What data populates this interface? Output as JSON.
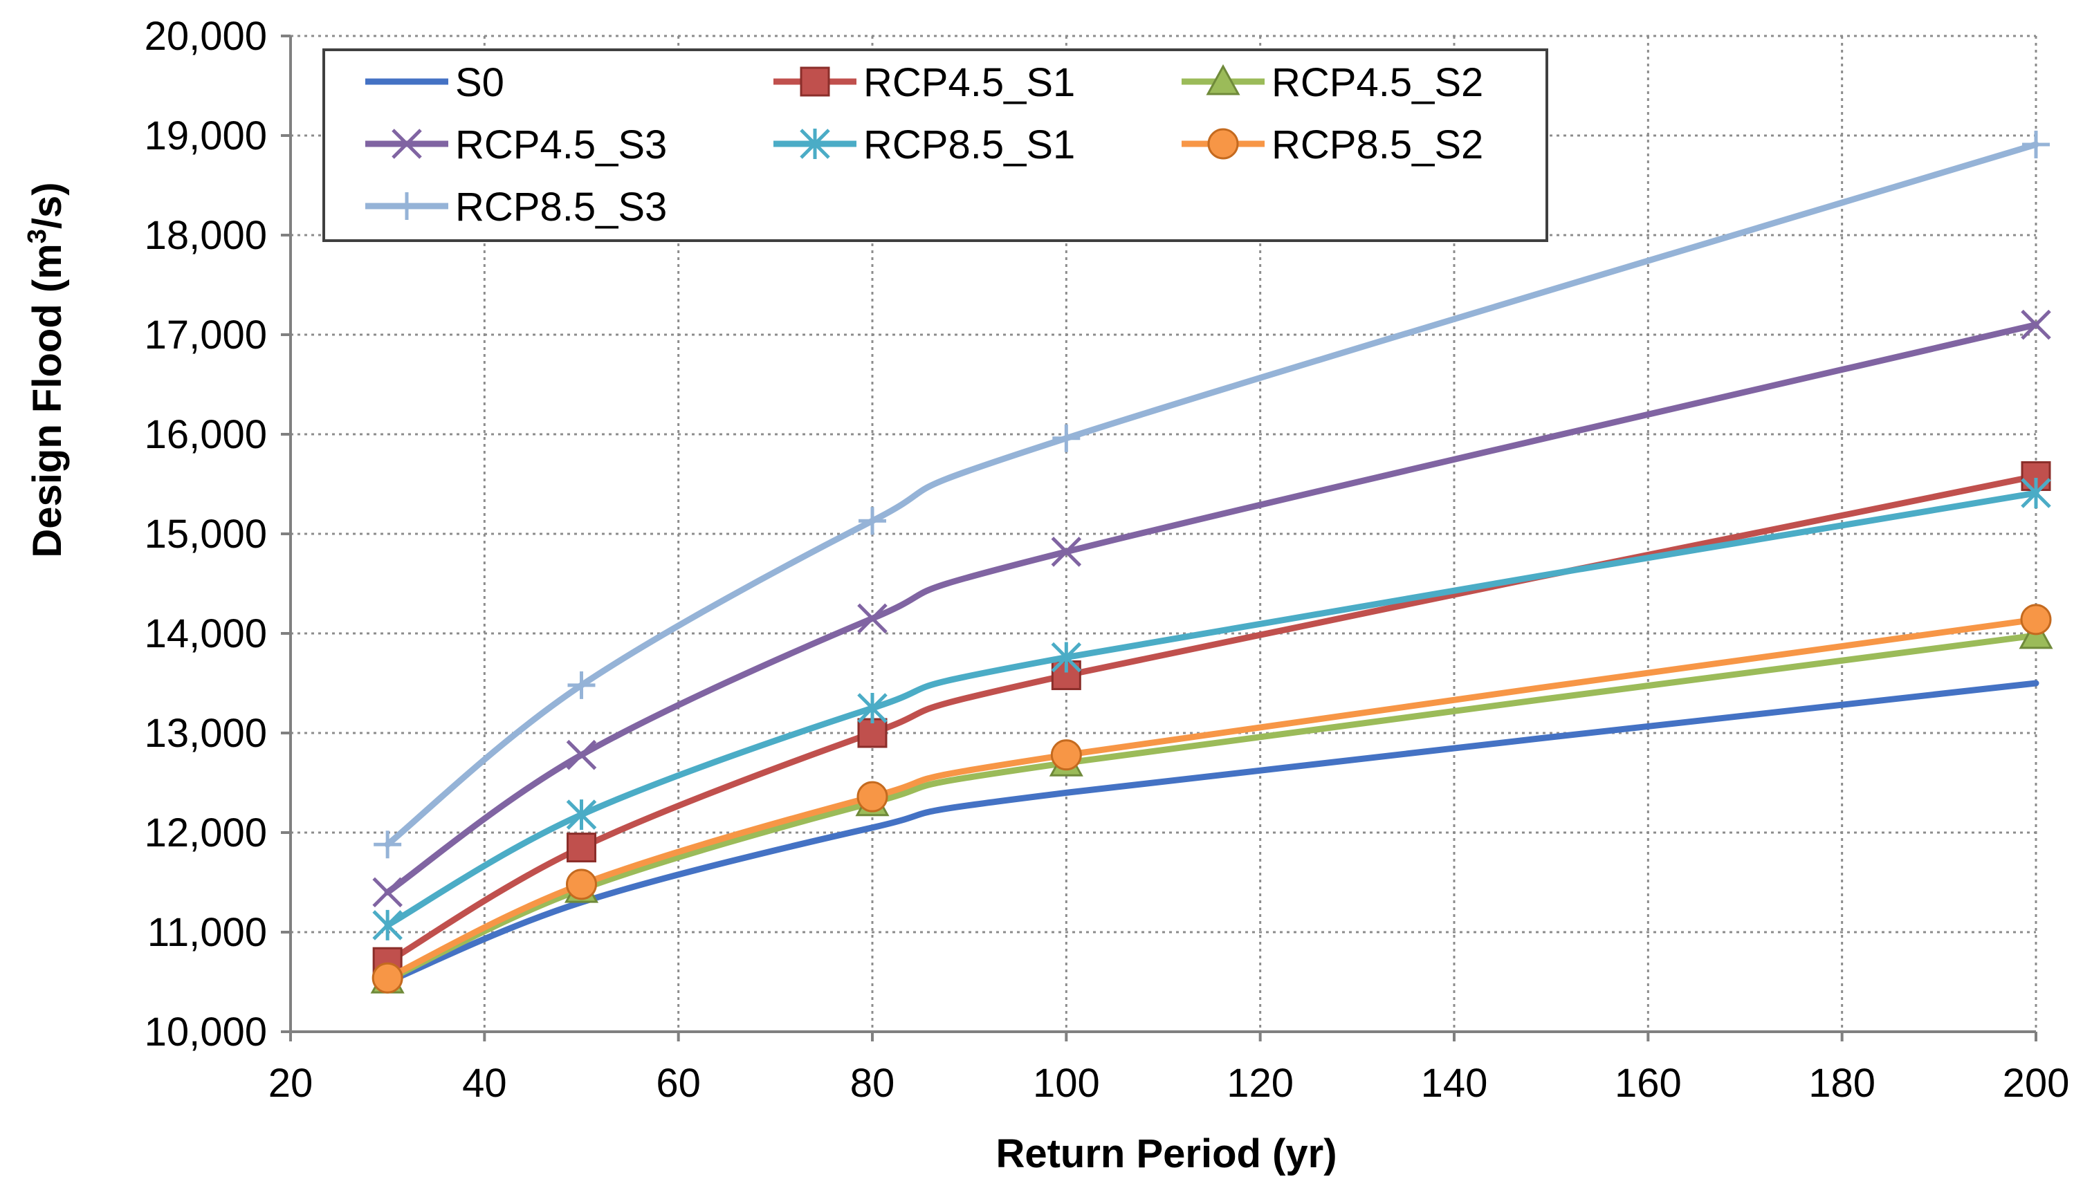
{
  "chart_data": {
    "type": "line",
    "title": "",
    "xlabel": "Return Period (yr)",
    "ylabel_main": "Design Flood (m",
    "ylabel_sup": "3",
    "ylabel_tail": "/s)",
    "xlim": [
      20,
      200
    ],
    "ylim": [
      10000,
      20000
    ],
    "xticks": [
      20,
      40,
      60,
      80,
      100,
      120,
      140,
      160,
      180,
      200
    ],
    "yticks": [
      10000,
      11000,
      12000,
      13000,
      14000,
      15000,
      16000,
      17000,
      18000,
      19000,
      20000
    ],
    "xtick_labels": [
      "20",
      "40",
      "60",
      "80",
      "100",
      "120",
      "140",
      "160",
      "180",
      "200"
    ],
    "ytick_labels": [
      "10,000",
      "11,000",
      "12,000",
      "13,000",
      "14,000",
      "15,000",
      "16,000",
      "17,000",
      "18,000",
      "19,000",
      "20,000"
    ],
    "grid": true,
    "legend_position": "top-left",
    "x": [
      30,
      50,
      80,
      100,
      200
    ],
    "series": [
      {
        "name": "S0",
        "values": [
          10500,
          11300,
          12050,
          12400,
          13500
        ],
        "color": "#4472C4",
        "marker": "none"
      },
      {
        "name": "RCP4.5_S1",
        "values": [
          10700,
          11850,
          13000,
          13580,
          15580
        ],
        "color": "#C0504D",
        "marker": "square"
      },
      {
        "name": "RCP4.5_S2",
        "values": [
          10520,
          11430,
          12300,
          12700,
          13980
        ],
        "color": "#9BBB59",
        "marker": "triangle"
      },
      {
        "name": "RCP4.5_S3",
        "values": [
          11400,
          12780,
          14150,
          14820,
          17100
        ],
        "color": "#8064A2",
        "marker": "x"
      },
      {
        "name": "RCP8.5_S1",
        "values": [
          11070,
          12180,
          13250,
          13760,
          15410
        ],
        "color": "#4BACC6",
        "marker": "star"
      },
      {
        "name": "RCP8.5_S2",
        "values": [
          10540,
          11480,
          12360,
          12780,
          14140
        ],
        "color": "#F79646",
        "marker": "circle"
      },
      {
        "name": "RCP8.5_S3",
        "values": [
          11880,
          13480,
          15130,
          15960,
          18910
        ],
        "color": "#95B3D7",
        "marker": "plus"
      }
    ]
  }
}
